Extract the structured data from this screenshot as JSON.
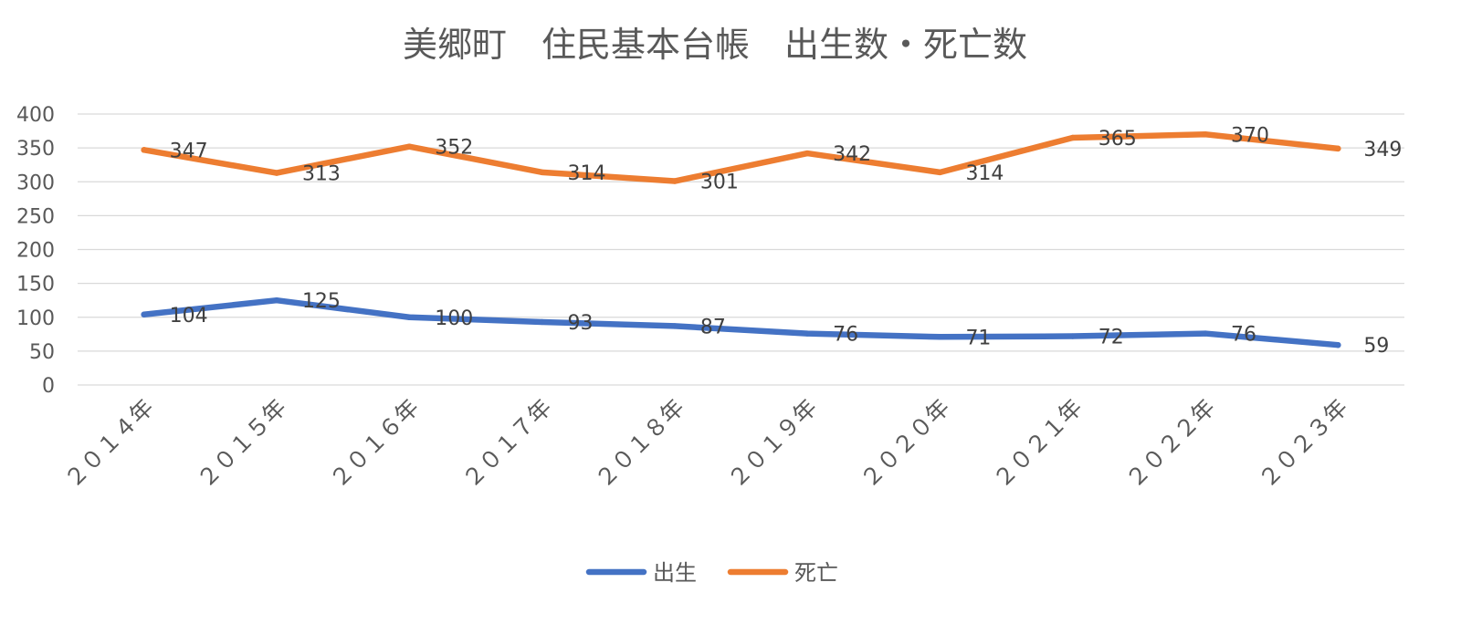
{
  "chart_data": {
    "type": "line",
    "title": "美郷町　住民基本台帳　出生数・死亡数",
    "xlabel": "",
    "ylabel": "",
    "categories": [
      "２０１４年",
      "２０１５年",
      "２０１６年",
      "２０１７年",
      "２０１８年",
      "２０１９年",
      "２０２０年",
      "２０２１年",
      "２０２２年",
      "２０２３年"
    ],
    "series": [
      {
        "name": "出生",
        "color": "#4472C4",
        "values": [
          104,
          125,
          100,
          93,
          87,
          76,
          71,
          72,
          76,
          59
        ]
      },
      {
        "name": "死亡",
        "color": "#ED7D31",
        "values": [
          347,
          313,
          352,
          314,
          301,
          342,
          314,
          365,
          370,
          349
        ]
      }
    ],
    "ylim": [
      0,
      400
    ],
    "yticks": [
      0,
      50,
      100,
      150,
      200,
      250,
      300,
      350,
      400
    ],
    "grid": true,
    "legend": "bottom-center",
    "data_labels": "right"
  }
}
